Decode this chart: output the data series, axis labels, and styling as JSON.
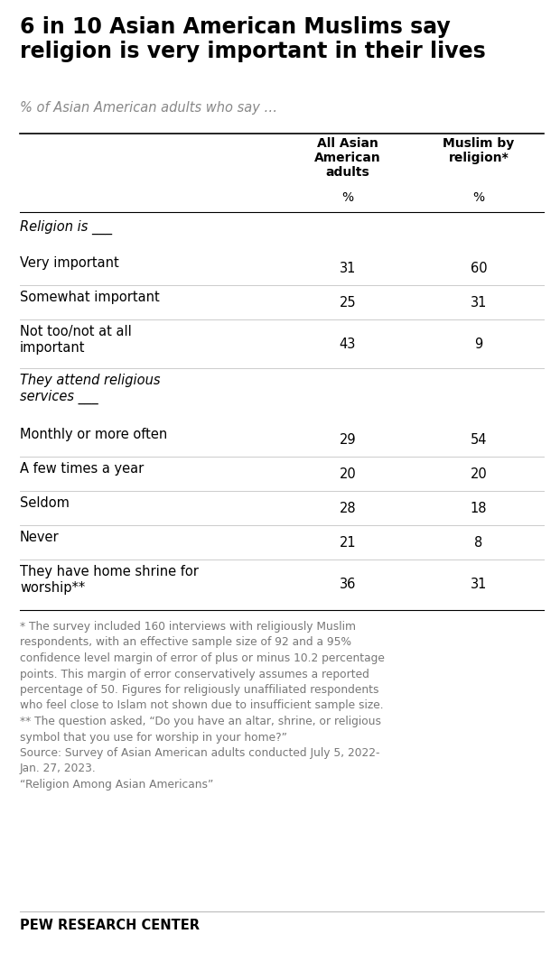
{
  "title": "6 in 10 Asian American Muslims say\nreligion is very important in their lives",
  "subtitle": "% of Asian American adults who say …",
  "col1_header": "All Asian\nAmerican\nadults",
  "col2_header": "Muslim by\nreligion*",
  "col_unit": "%",
  "rows": [
    {
      "label": "Religion is ___",
      "val1": null,
      "val2": null,
      "italic": true,
      "section_header": true,
      "multiline": false
    },
    {
      "label": "Very important",
      "val1": "31",
      "val2": "60",
      "italic": false,
      "section_header": false,
      "multiline": false
    },
    {
      "label": "Somewhat important",
      "val1": "25",
      "val2": "31",
      "italic": false,
      "section_header": false,
      "multiline": false
    },
    {
      "label": "Not too/not at all\nimportant",
      "val1": "43",
      "val2": "9",
      "italic": false,
      "section_header": false,
      "multiline": true
    },
    {
      "label": "They attend religious\nservices ___",
      "val1": null,
      "val2": null,
      "italic": true,
      "section_header": true,
      "multiline": true
    },
    {
      "label": "Monthly or more often",
      "val1": "29",
      "val2": "54",
      "italic": false,
      "section_header": false,
      "multiline": false
    },
    {
      "label": "A few times a year",
      "val1": "20",
      "val2": "20",
      "italic": false,
      "section_header": false,
      "multiline": false
    },
    {
      "label": "Seldom",
      "val1": "28",
      "val2": "18",
      "italic": false,
      "section_header": false,
      "multiline": false
    },
    {
      "label": "Never",
      "val1": "21",
      "val2": "8",
      "italic": false,
      "section_header": false,
      "multiline": false
    },
    {
      "label": "They have home shrine for\nworship**",
      "val1": "36",
      "val2": "31",
      "italic": false,
      "section_header": false,
      "multiline": true
    }
  ],
  "footnote_text": "* The survey included 160 interviews with religiously Muslim\nrespondents, with an effective sample size of 92 and a 95%\nconfidence level margin of error of plus or minus 10.2 percentage\npoints. This margin of error conservatively assumes a reported\npercentage of 50. Figures for religiously unaffiliated respondents\nwho feel close to Islam not shown due to insufficient sample size.\n** The question asked, “Do you have an altar, shrine, or religious\nsymbol that you use for worship in your home?”\nSource: Survey of Asian American adults conducted July 5, 2022-\nJan. 27, 2023.\n“Religion Among Asian Americans”",
  "branding": "PEW RESEARCH CENTER",
  "bg_color": "#ffffff",
  "title_color": "#000000",
  "subtitle_color": "#888888",
  "header_color": "#000000",
  "data_color": "#000000",
  "footnote_color": "#777777",
  "line_color_dark": "#000000",
  "line_color_light": "#cccccc"
}
